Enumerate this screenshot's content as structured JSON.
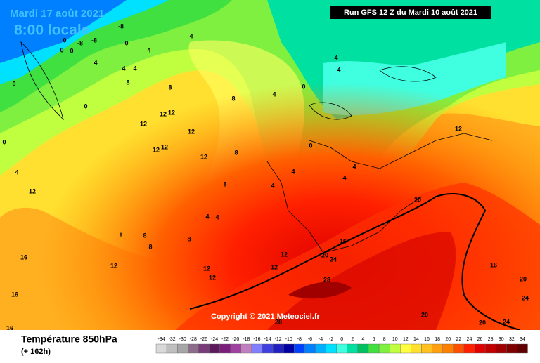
{
  "header": {
    "valid_time": "Mardi 17 août 2021",
    "local_time": "8:00 locale",
    "run": "Run GFS 12 Z du Mardi 10 août 2021"
  },
  "footer": {
    "title": "Température 850hPa",
    "lead": "(+ 162h)",
    "copyright": "Copyright © 2021 Meteociel.fr"
  },
  "color_scale": {
    "ticks": [
      -34,
      -32,
      -30,
      -28,
      -26,
      -24,
      -22,
      -20,
      -18,
      -16,
      -14,
      -12,
      -10,
      -8,
      -6,
      -4,
      -2,
      0,
      2,
      4,
      6,
      8,
      10,
      12,
      14,
      16,
      18,
      20,
      22,
      24,
      26,
      28,
      30,
      32,
      34
    ],
    "colors": [
      "#d9d9d9",
      "#bfbfbf",
      "#a6a6a6",
      "#8c6d8c",
      "#7a3d7a",
      "#5c1a5c",
      "#7a1e7a",
      "#a040a0",
      "#c080c0",
      "#8080ff",
      "#4040e0",
      "#2020c0",
      "#0000a0",
      "#0040ff",
      "#0080ff",
      "#00b0ff",
      "#00e0ff",
      "#40ffe0",
      "#00e0a0",
      "#00c060",
      "#40e040",
      "#80f040",
      "#c0ff40",
      "#ffff40",
      "#ffe030",
      "#ffc020",
      "#ffa010",
      "#ff8000",
      "#ff5000",
      "#ff2000",
      "#e00000",
      "#c00000",
      "#a00000",
      "#800000",
      "#600000"
    ]
  },
  "contour_labels": [
    "-8",
    "-8",
    "-8",
    "0",
    "0",
    "0",
    "0",
    "4",
    "4",
    "4",
    "4",
    "4",
    "8",
    "8",
    "0",
    "12",
    "12",
    "12",
    "12",
    "12",
    "12",
    "12",
    "8",
    "8",
    "4",
    "4",
    "4",
    "4",
    "4",
    "4",
    "4",
    "4",
    "4",
    "0",
    "0",
    "8",
    "8",
    "8",
    "8",
    "8",
    "12",
    "12",
    "12",
    "12",
    "12",
    "12",
    "12",
    "16",
    "16",
    "16",
    "16",
    "16",
    "20",
    "20",
    "20",
    "20",
    "20",
    "24",
    "24",
    "24",
    "28",
    "28",
    "0",
    "0",
    "4"
  ]
}
